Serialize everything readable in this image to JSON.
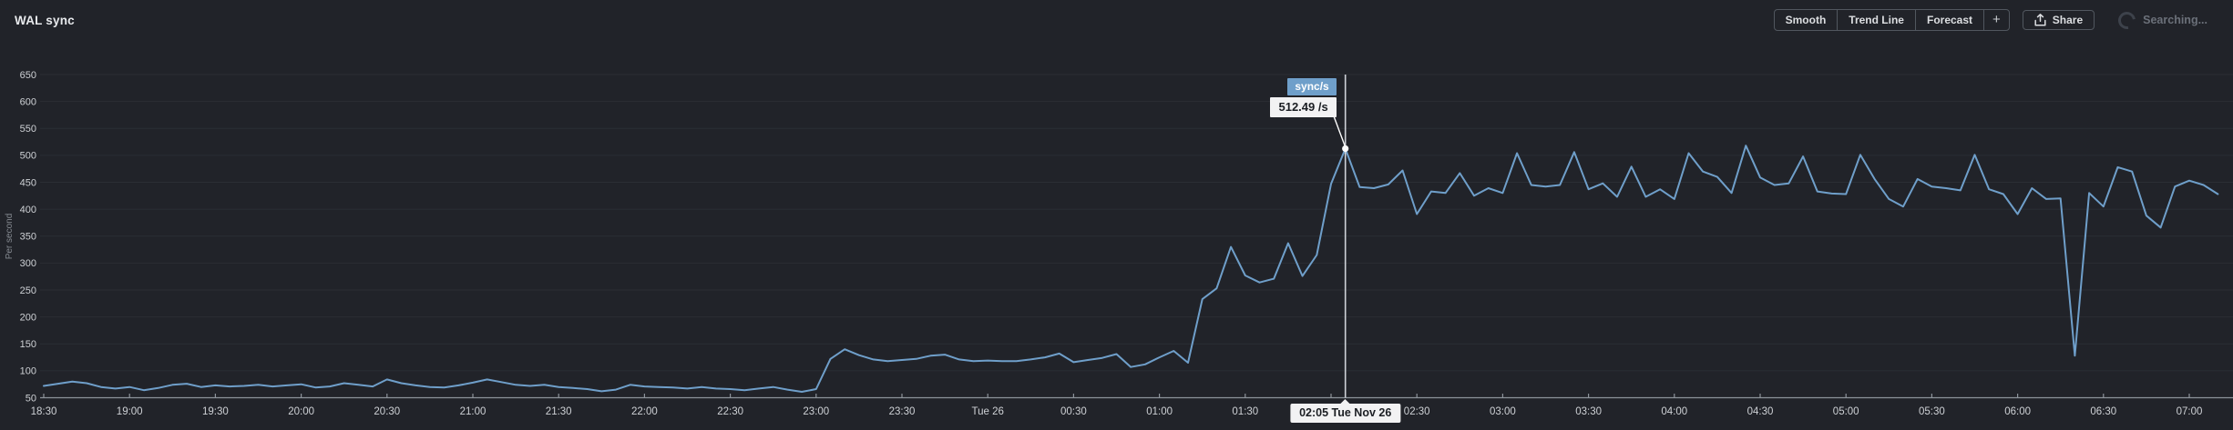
{
  "header": {
    "title": "WAL sync",
    "group_buttons": [
      "Smooth",
      "Trend Line",
      "Forecast",
      "+"
    ],
    "share_label": "Share",
    "searching_label": "Searching..."
  },
  "tooltip": {
    "series_label": "sync/s",
    "value_label": "512.49 /s",
    "date_label": "02:05 Tue Nov 26"
  },
  "chart_data": {
    "type": "line",
    "title": "WAL sync",
    "ylabel": "Per second",
    "ylim": [
      50,
      650
    ],
    "y_ticks": [
      650,
      600,
      550,
      500,
      450,
      400,
      350,
      300,
      250,
      200,
      150,
      100,
      50
    ],
    "x_tick_labels": [
      "18:30",
      "19:00",
      "19:30",
      "20:00",
      "20:30",
      "21:00",
      "21:30",
      "22:00",
      "22:30",
      "23:00",
      "23:30",
      "Tue 26",
      "00:30",
      "01:00",
      "01:30",
      "02:00",
      "02:30",
      "03:00",
      "03:30",
      "04:00",
      "04:30",
      "05:00",
      "05:30",
      "06:00",
      "06:30",
      "07:00"
    ],
    "x_start_label": "18:30",
    "sample_step_minutes": 5,
    "grid": "horizontal",
    "legend_position": "none",
    "series": [
      {
        "name": "sync/s",
        "values": [
          72,
          76,
          80,
          77,
          70,
          67,
          70,
          64,
          68,
          74,
          76,
          70,
          73,
          71,
          72,
          74,
          71,
          73,
          75,
          69,
          71,
          77,
          74,
          71,
          84,
          77,
          73,
          70,
          69,
          73,
          78,
          84,
          79,
          74,
          72,
          74,
          70,
          68,
          66,
          62,
          65,
          74,
          71,
          70,
          69,
          67,
          70,
          67,
          66,
          64,
          67,
          70,
          65,
          61,
          66,
          122,
          140,
          129,
          121,
          118,
          120,
          122,
          128,
          130,
          121,
          118,
          119,
          118,
          118,
          121,
          125,
          132,
          116,
          120,
          124,
          131,
          107,
          112,
          125,
          137,
          115,
          233,
          253,
          330,
          277,
          264,
          271,
          337,
          276,
          315,
          447,
          512.49,
          441,
          439,
          446,
          472,
          391,
          433,
          430,
          467,
          425,
          439,
          430,
          504,
          445,
          442,
          445,
          506,
          437,
          448,
          423,
          479,
          423,
          437,
          419,
          504,
          470,
          460,
          430,
          518,
          459,
          445,
          448,
          498,
          433,
          429,
          428,
          501,
          456,
          419,
          405,
          456,
          442,
          439,
          435,
          501,
          437,
          428,
          391,
          439,
          419,
          420,
          128,
          430,
          405,
          478,
          470,
          388,
          366,
          442,
          453,
          445,
          428
        ]
      }
    ],
    "crosshair": {
      "index": 91,
      "value": 512.49,
      "time_label": "02:05 Tue Nov 26"
    }
  },
  "colors": {
    "background": "#212329",
    "grid": "#2b2e34",
    "axis": "#8d939b",
    "tick_label": "#ced1d5",
    "unit_label": "#83888f",
    "line": "#6f9fca",
    "crosshair": "#ced2d8",
    "dot": "#ffffff",
    "tooltip_series_bg": "#6f9fca",
    "tooltip_value_bg": "#f2f2f3",
    "tooltip_value_text": "#1b1e23"
  }
}
